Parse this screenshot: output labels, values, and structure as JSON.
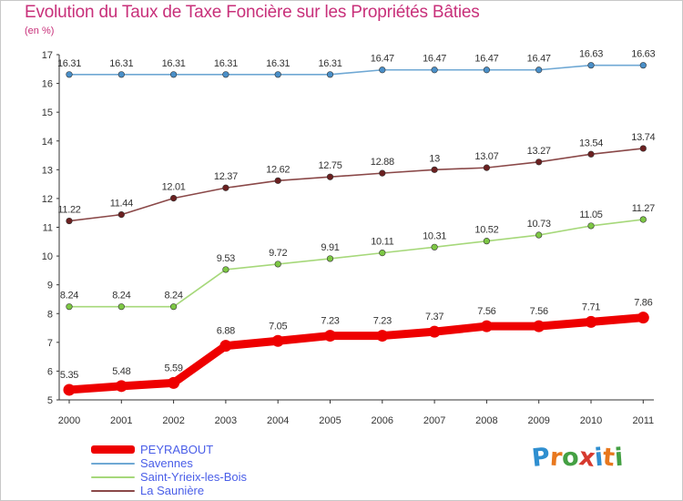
{
  "header": {
    "title": "Evolution du Taux de Taxe Foncière sur les Propriétés Bâties",
    "subtitle": "(en %)"
  },
  "brand": {
    "letters": [
      "P",
      "r",
      "o",
      "x",
      "i",
      "t",
      "i"
    ],
    "colors": [
      "#2f8fd0",
      "#e8781e",
      "#44a043",
      "#d63a2f",
      "#2f8fd0",
      "#e8781e",
      "#44a043"
    ]
  },
  "chart_data": {
    "type": "line",
    "title": "Evolution du Taux de Taxe Foncière sur les Propriétés Bâties",
    "ylabel": "(en %)",
    "xlabel": "",
    "ylim": [
      5,
      17
    ],
    "yticks": [
      "5",
      "6",
      "7",
      "8",
      "9",
      "10",
      "11",
      "12",
      "13",
      "14",
      "15",
      "16",
      "17"
    ],
    "categories": [
      "2000",
      "2001",
      "2002",
      "2003",
      "2004",
      "2005",
      "2006",
      "2007",
      "2008",
      "2009",
      "2010",
      "2011"
    ],
    "grid": false,
    "legend_position": "bottom-left",
    "series": [
      {
        "name": "Savennes",
        "color": "#6fa8d4",
        "marker": "#4a8fc8",
        "values": [
          16.31,
          16.31,
          16.31,
          16.31,
          16.31,
          16.31,
          16.47,
          16.47,
          16.47,
          16.47,
          16.63,
          16.63
        ],
        "labels": [
          "16.31",
          "16.31",
          "16.31",
          "16.31",
          "16.31",
          "16.31",
          "16.47",
          "16.47",
          "16.47",
          "16.47",
          "16.63",
          "16.63"
        ]
      },
      {
        "name": "La Saunière",
        "color": "#8a4848",
        "marker": "#6b2020",
        "values": [
          11.22,
          11.44,
          12.01,
          12.37,
          12.62,
          12.75,
          12.88,
          13.0,
          13.07,
          13.27,
          13.54,
          13.74
        ],
        "labels": [
          "11.22",
          "11.44",
          "12.01",
          "12.37",
          "12.62",
          "12.75",
          "12.88",
          "13",
          "13.07",
          "13.27",
          "13.54",
          "13.74"
        ]
      },
      {
        "name": "Saint-Yrieix-les-Bois",
        "color": "#a6d87a",
        "marker": "#7dc744",
        "values": [
          8.24,
          8.24,
          8.24,
          9.53,
          9.72,
          9.91,
          10.11,
          10.31,
          10.52,
          10.73,
          11.05,
          11.27
        ],
        "labels": [
          "8.24",
          "8.24",
          "8.24",
          "9.53",
          "9.72",
          "9.91",
          "10.11",
          "10.31",
          "10.52",
          "10.73",
          "11.05",
          "11.27"
        ]
      },
      {
        "name": "PEYRABOUT",
        "color": "#ee0000",
        "marker": "#ee0000",
        "values": [
          5.35,
          5.48,
          5.59,
          6.88,
          7.05,
          7.23,
          7.23,
          7.37,
          7.56,
          7.56,
          7.71,
          7.86
        ],
        "labels": [
          "5.35",
          "5.48",
          "5.59",
          "6.88",
          "7.05",
          "7.23",
          "7.23",
          "7.37",
          "7.56",
          "7.56",
          "7.71",
          "7.86"
        ]
      }
    ],
    "legend": [
      {
        "name": "PEYRABOUT",
        "color": "#ee0000",
        "text_color": "#4a5ee8"
      },
      {
        "name": "Savennes",
        "color": "#6fa8d4",
        "text_color": "#4a5ee8"
      },
      {
        "name": "Saint-Yrieix-les-Bois",
        "color": "#a6d87a",
        "text_color": "#4a5ee8"
      },
      {
        "name": "La Saunière",
        "color": "#8a4848",
        "text_color": "#4a5ee8"
      }
    ]
  }
}
